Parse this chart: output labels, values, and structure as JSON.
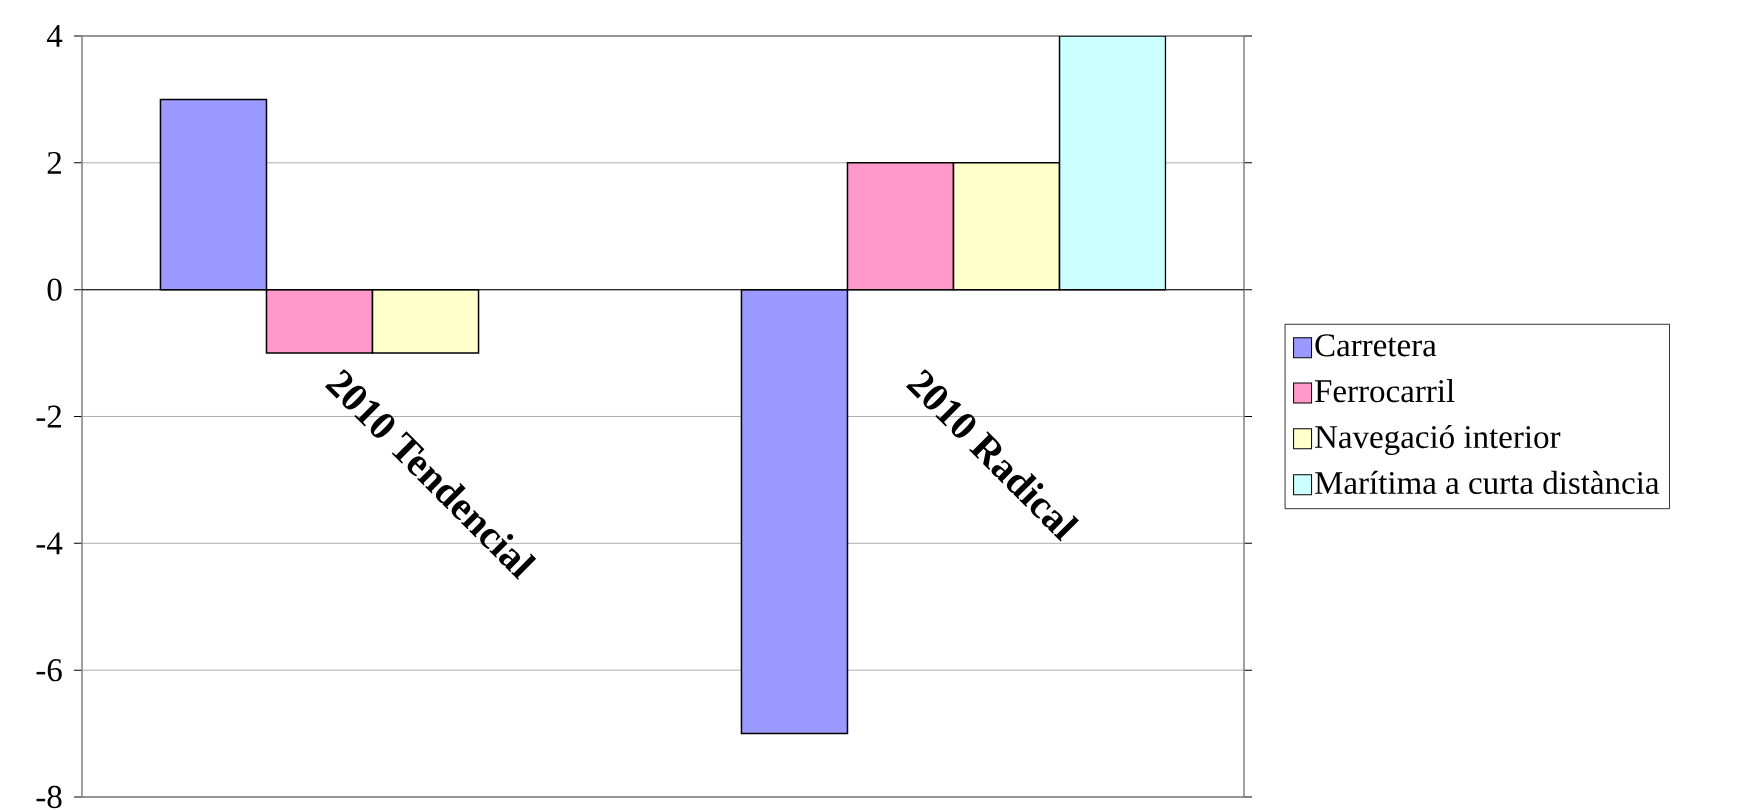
{
  "chart_data": {
    "type": "bar",
    "categories": [
      "2010 Tendencial",
      "2010 Radical"
    ],
    "series": [
      {
        "name": "Carretera",
        "color": "#9999ff",
        "values": [
          3,
          -7
        ]
      },
      {
        "name": "Ferrocarril",
        "color": "#ff99cc",
        "values": [
          -1,
          2
        ]
      },
      {
        "name": "Navegació interior",
        "color": "#ffffcc",
        "values": [
          -1,
          2
        ]
      },
      {
        "name": "Marítima a curta distància",
        "color": "#ccffff",
        "values": [
          null,
          4
        ]
      }
    ],
    "ylim": [
      -8,
      4
    ],
    "yticks": [
      -8,
      -6,
      -4,
      -2,
      0,
      2,
      4
    ],
    "grid": "y",
    "legend": "right"
  }
}
